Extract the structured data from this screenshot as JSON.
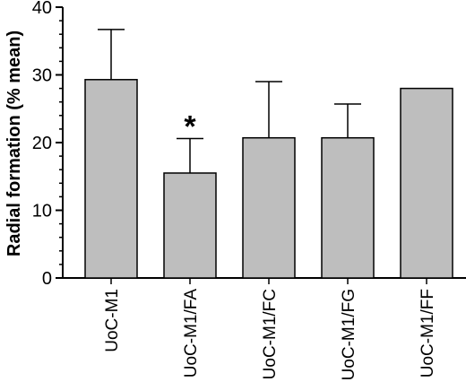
{
  "chart_data": {
    "type": "bar",
    "title": "",
    "xlabel": "",
    "ylabel": "Radial formation (% mean)",
    "ylim": [
      0,
      40
    ],
    "yticks": [
      "0",
      "10",
      "20",
      "30",
      "40"
    ],
    "grid": false,
    "categories": [
      "UoC-M1",
      "UoC-M1/FA",
      "UoC-M1/FC",
      "UoC-M1/FG",
      "UoC-M1/FF"
    ],
    "values": [
      29.3,
      15.5,
      20.7,
      20.7,
      28.0
    ],
    "error_upper": [
      36.7,
      20.6,
      29.0,
      25.7,
      null
    ],
    "annotations": [
      {
        "category": "UoC-M1/FA",
        "text": "*"
      }
    ],
    "colors": {
      "bar_fill": "#bebebe",
      "bar_stroke": "#000000"
    }
  }
}
